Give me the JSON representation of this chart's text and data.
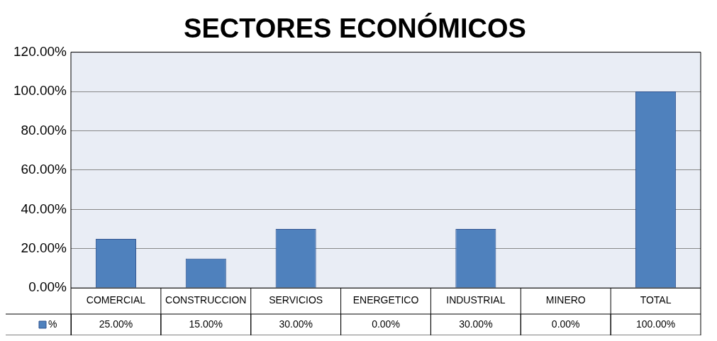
{
  "chart_data": {
    "type": "bar",
    "title": "SECTORES ECONÓMICOS",
    "categories": [
      "COMERCIAL",
      "CONSTRUCCION",
      "SERVICIOS",
      "ENERGETICO",
      "INDUSTRIAL",
      "MINERO",
      "TOTAL"
    ],
    "series": [
      {
        "name": "%",
        "color": "#4f81bd",
        "values": [
          25,
          15,
          30,
          0,
          30,
          0,
          100
        ],
        "value_labels": [
          "25.00%",
          "15.00%",
          "30.00%",
          "0.00%",
          "30.00%",
          "0.00%",
          "100.00%"
        ]
      }
    ],
    "ylim": [
      0,
      120
    ],
    "yticks": [
      {
        "value": 0,
        "label": "0.00%"
      },
      {
        "value": 20,
        "label": "20.00%"
      },
      {
        "value": 40,
        "label": "40.00%"
      },
      {
        "value": 60,
        "label": "60.00%"
      },
      {
        "value": 80,
        "label": "80.00%"
      },
      {
        "value": 100,
        "label": "100.00%"
      },
      {
        "value": 120,
        "label": "120.00%"
      }
    ],
    "grid": "y",
    "legend": "bottom"
  }
}
